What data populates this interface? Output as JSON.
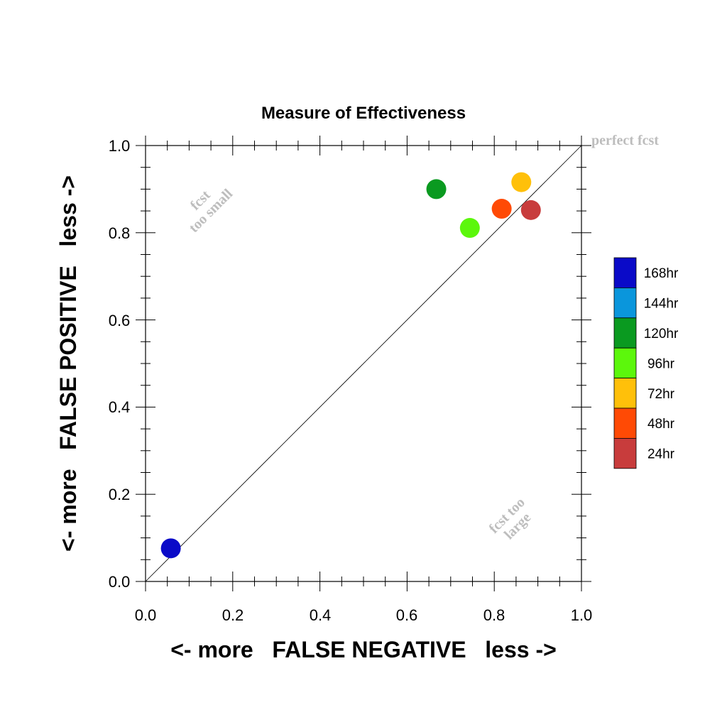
{
  "chart_data": {
    "type": "scatter",
    "title": "Measure of Effectiveness",
    "xlabel": "<- more   FALSE NEGATIVE   less ->",
    "ylabel": "<- more   FALSE POSITIVE   less ->",
    "xlim": [
      0.0,
      1.0
    ],
    "ylim": [
      0.0,
      1.0
    ],
    "x_ticks": [
      "0.0",
      "0.2",
      "0.4",
      "0.6",
      "0.8",
      "1.0"
    ],
    "y_ticks": [
      "0.0",
      "0.2",
      "0.4",
      "0.6",
      "0.8",
      "1.0"
    ],
    "grid": false,
    "reference_line": {
      "from": [
        0.0,
        0.0
      ],
      "to": [
        1.0,
        1.0
      ]
    },
    "annotations": {
      "perfect": "perfect fcst",
      "small_line1": "fcst",
      "small_line2": "too small",
      "large_line1": "fcst too",
      "large_line2": "large"
    },
    "legend_placement": "right",
    "series": [
      {
        "name": "168hr",
        "color": "#0a0ac8",
        "x": 0.058,
        "y": 0.076
      },
      {
        "name": "144hr",
        "color": "#0a96dc",
        "x": null,
        "y": null
      },
      {
        "name": "120hr",
        "color": "#0a9a20",
        "x": 0.667,
        "y": 0.9
      },
      {
        "name": "96hr",
        "color": "#5cf70c",
        "x": 0.744,
        "y": 0.811
      },
      {
        "name": "72hr",
        "color": "#ffc00a",
        "x": 0.862,
        "y": 0.916
      },
      {
        "name": "48hr",
        "color": "#ff4a05",
        "x": 0.817,
        "y": 0.855
      },
      {
        "name": "24hr",
        "color": "#c83c3c",
        "x": 0.884,
        "y": 0.852
      }
    ]
  }
}
